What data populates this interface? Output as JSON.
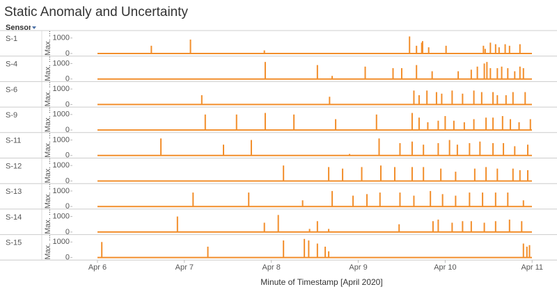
{
  "chart_data": {
    "type": "bar",
    "title": "Static Anomaly and Uncertainty",
    "facet_label": "Sensor",
    "x_label": "Minute of Timestamp [April 2020]",
    "y_label": "Max. ...",
    "color": "#f28e2b",
    "xlim": [
      5.72,
      11.11
    ],
    "xticks": [
      {
        "value": 6,
        "label": "Apr 6"
      },
      {
        "value": 7,
        "label": "Apr 7"
      },
      {
        "value": 8,
        "label": "Apr 8"
      },
      {
        "value": 9,
        "label": "Apr 9"
      },
      {
        "value": 10,
        "label": "Apr 10"
      },
      {
        "value": 11,
        "label": "Apr 11"
      }
    ],
    "ylim": [
      0,
      1300
    ],
    "yticks": [
      0,
      1000
    ],
    "series": [
      {
        "name": "S-1",
        "x": [
          6.62,
          7.07,
          7.92,
          9.59,
          9.67,
          9.73,
          9.74,
          9.81,
          10.01,
          10.44,
          10.46,
          10.52,
          10.58,
          10.62,
          10.69,
          10.74,
          10.86
        ],
        "values": [
          500,
          900,
          200,
          1100,
          500,
          700,
          800,
          400,
          500,
          500,
          300,
          700,
          600,
          400,
          600,
          500,
          600
        ]
      },
      {
        "name": "S-4",
        "x": [
          7.93,
          8.53,
          8.7,
          9.08,
          9.4,
          9.5,
          9.67,
          9.85,
          10.15,
          10.3,
          10.37,
          10.45,
          10.48,
          10.52,
          10.6,
          10.65,
          10.72,
          10.8,
          10.86,
          10.9
        ],
        "values": [
          1100,
          900,
          200,
          800,
          700,
          700,
          900,
          500,
          500,
          600,
          800,
          1000,
          1100,
          700,
          700,
          800,
          700,
          500,
          800,
          700
        ]
      },
      {
        "name": "S-6",
        "x": [
          7.2,
          8.67,
          9.64,
          9.7,
          9.79,
          9.9,
          9.96,
          10.08,
          10.2,
          10.33,
          10.42,
          10.55,
          10.6,
          10.7,
          10.78,
          10.92
        ],
        "values": [
          600,
          500,
          900,
          600,
          900,
          800,
          700,
          900,
          700,
          900,
          800,
          800,
          600,
          600,
          800,
          800
        ]
      },
      {
        "name": "S-9",
        "x": [
          7.24,
          7.6,
          7.93,
          8.26,
          8.74,
          9.21,
          9.62,
          9.7,
          9.8,
          9.92,
          10.0,
          10.1,
          10.22,
          10.33,
          10.47,
          10.55,
          10.66,
          10.75,
          10.85,
          10.98
        ],
        "values": [
          1000,
          1000,
          1100,
          1000,
          700,
          1000,
          1100,
          800,
          500,
          600,
          900,
          600,
          500,
          700,
          800,
          800,
          900,
          700,
          500,
          700
        ]
      },
      {
        "name": "S-11",
        "x": [
          6.73,
          7.45,
          7.77,
          8.9,
          9.24,
          9.48,
          9.62,
          9.75,
          9.92,
          10.05,
          10.14,
          10.28,
          10.4,
          10.55,
          10.67,
          10.8,
          10.95
        ],
        "values": [
          1100,
          700,
          1000,
          100,
          1100,
          800,
          900,
          700,
          800,
          1000,
          700,
          800,
          900,
          800,
          800,
          600,
          700
        ]
      },
      {
        "name": "S-12",
        "x": [
          8.14,
          8.66,
          8.82,
          9.04,
          9.26,
          9.42,
          9.62,
          9.75,
          9.95,
          10.12,
          10.34,
          10.47,
          10.6,
          10.78,
          10.86,
          10.95
        ],
        "values": [
          1000,
          900,
          800,
          900,
          1000,
          900,
          900,
          900,
          800,
          600,
          800,
          900,
          800,
          800,
          700,
          700
        ]
      },
      {
        "name": "S-13",
        "x": [
          7.1,
          7.74,
          8.36,
          8.7,
          8.94,
          9.1,
          9.25,
          9.48,
          9.64,
          9.83,
          9.97,
          10.12,
          10.28,
          10.43,
          10.58,
          10.72,
          10.9
        ],
        "values": [
          900,
          900,
          400,
          1000,
          700,
          800,
          900,
          900,
          700,
          1000,
          800,
          700,
          900,
          900,
          900,
          900,
          400
        ]
      },
      {
        "name": "S-14",
        "x": [
          6.92,
          7.92,
          8.08,
          8.44,
          8.53,
          8.66,
          9.47,
          9.86,
          9.92,
          10.08,
          10.2,
          10.3,
          10.45,
          10.58,
          10.74,
          10.88
        ],
        "values": [
          1000,
          600,
          1100,
          200,
          700,
          200,
          500,
          700,
          800,
          600,
          700,
          700,
          600,
          700,
          800,
          700
        ]
      },
      {
        "name": "S-15",
        "x": [
          6.05,
          7.27,
          8.14,
          8.38,
          8.43,
          8.53,
          8.62,
          8.66,
          10.9,
          10.94,
          10.97
        ],
        "values": [
          1000,
          700,
          1100,
          1200,
          1100,
          900,
          700,
          400,
          900,
          700,
          800
        ]
      }
    ]
  }
}
